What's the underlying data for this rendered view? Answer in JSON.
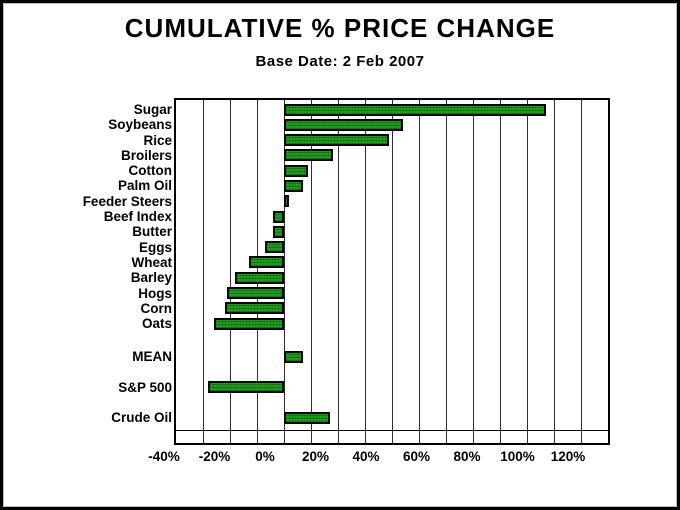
{
  "chart_data": {
    "type": "bar",
    "orientation": "horizontal",
    "title": "CUMULATIVE % PRICE CHANGE",
    "subtitle": "Base Date: 2 Feb 2007",
    "xlabel": "",
    "ylabel": "",
    "unit": "%",
    "xlim": [
      -40,
      120
    ],
    "grid_step": 10,
    "grid_on": true,
    "tick_labels": [
      "-40%",
      "-20%",
      "0%",
      "20%",
      "40%",
      "60%",
      "80%",
      "100%",
      "120%"
    ],
    "categories": [
      "Sugar",
      "Soybeans",
      "Rice",
      "Broilers",
      "Cotton",
      "Palm Oil",
      "Feeder Steers",
      "Beef Index",
      "Butter",
      "Eggs",
      "Wheat",
      "Barley",
      "Hogs",
      "Corn",
      "Oats",
      "MEAN",
      "S&P 500",
      "Crude Oil"
    ],
    "values": [
      97,
      44,
      39,
      18,
      9,
      7,
      1,
      -4,
      -4,
      -7,
      -13,
      -18,
      -21,
      -22,
      -26,
      7,
      -28,
      17
    ],
    "spacer_before_labels": [
      "MEAN",
      "S&P 500",
      "Crude Oil"
    ],
    "bar_fill": "#1da11d",
    "bar_border": "#000000",
    "gridline_color": "#2e2e2e",
    "background": "#ffffff",
    "text_color": "#000000"
  }
}
